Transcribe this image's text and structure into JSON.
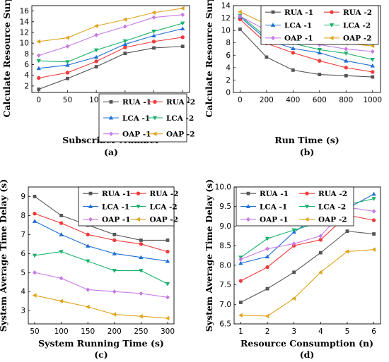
{
  "chart_data": [
    {
      "panel_label": "(a)",
      "type": "line",
      "xlabel": "Subscriber Number",
      "ylabel": "Calculate Resource Surplus",
      "x": [
        0,
        50,
        100,
        150,
        200,
        250
      ],
      "xticks": [
        0,
        50,
        100,
        150,
        200,
        250
      ],
      "yticks": [
        2,
        4,
        6,
        8,
        10,
        12,
        14,
        16
      ],
      "xlim": [
        -12,
        262
      ],
      "ylim": [
        0.8,
        17
      ],
      "legend_position": "lower-right",
      "series": [
        {
          "name": "RUA -1",
          "color": "#555555",
          "marker": "square",
          "values": [
            1.4,
            3.4,
            5.6,
            8.1,
            9.1,
            9.4
          ]
        },
        {
          "name": "RUA -2",
          "color": "#f03c3c",
          "marker": "circle",
          "values": [
            3.5,
            4.5,
            6.6,
            9.2,
            10.3,
            11.1
          ]
        },
        {
          "name": "LCA -1",
          "color": "#1f6fd6",
          "marker": "triangle-up",
          "values": [
            5.3,
            5.9,
            7.4,
            9.8,
            11.4,
            12.7
          ]
        },
        {
          "name": "LCA -2",
          "color": "#18b06a",
          "marker": "triangle-down",
          "values": [
            6.7,
            6.5,
            8.7,
            10.4,
            12.2,
            13.7
          ]
        },
        {
          "name": "OAP -1",
          "color": "#c77ae6",
          "marker": "diamond",
          "values": [
            7.7,
            9.4,
            11.5,
            13.1,
            14.8,
            15.3
          ]
        },
        {
          "name": "OAP -2",
          "color": "#e0a319",
          "marker": "triangle-left",
          "values": [
            10.3,
            11.0,
            13.2,
            14.4,
            15.7,
            16.5
          ]
        }
      ]
    },
    {
      "panel_label": "(b)",
      "type": "line",
      "xlabel": "Run Time (s)",
      "ylabel": "Calculate Resource Surplus",
      "x": [
        0,
        200,
        400,
        600,
        800,
        1000
      ],
      "xticks": [
        0,
        200,
        400,
        600,
        800,
        1000
      ],
      "yticks": [
        0,
        2,
        4,
        6,
        8,
        10,
        12,
        14
      ],
      "xlim": [
        -50,
        1060
      ],
      "ylim": [
        0,
        14
      ],
      "legend_position": "top-right",
      "series": [
        {
          "name": "RUA -1",
          "color": "#555555",
          "marker": "square",
          "values": [
            10.2,
            5.7,
            3.6,
            2.9,
            2.7,
            2.5
          ]
        },
        {
          "name": "RUA -2",
          "color": "#f03c3c",
          "marker": "circle",
          "values": [
            11.8,
            7.9,
            6.4,
            5.1,
            4.0,
            3.3
          ]
        },
        {
          "name": "LCA -1",
          "color": "#1f6fd6",
          "marker": "triangle-up",
          "values": [
            12.2,
            8.5,
            7.1,
            6.4,
            5.1,
            4.3
          ]
        },
        {
          "name": "LCA -2",
          "color": "#18b06a",
          "marker": "triangle-down",
          "values": [
            12.4,
            8.9,
            7.9,
            6.9,
            6.3,
            5.3
          ]
        },
        {
          "name": "OAP -1",
          "color": "#c77ae6",
          "marker": "diamond",
          "values": [
            12.3,
            10.0,
            8.5,
            7.7,
            7.0,
            6.6
          ]
        },
        {
          "name": "OAP -2",
          "color": "#e0a319",
          "marker": "triangle-left",
          "values": [
            13.0,
            11.0,
            9.5,
            8.7,
            7.9,
            7.5
          ]
        }
      ]
    },
    {
      "panel_label": "(c)",
      "type": "line",
      "xlabel": "System Running Time (s)",
      "ylabel": "System Average Time Delay (s)",
      "x": [
        50,
        100,
        150,
        200,
        250,
        300
      ],
      "xticks": [
        50,
        100,
        150,
        200,
        250,
        300
      ],
      "yticks": [
        3,
        4,
        5,
        6,
        7,
        8,
        9
      ],
      "xlim": [
        38,
        312
      ],
      "ylim": [
        2.3,
        9.5
      ],
      "legend_position": "top-right",
      "series": [
        {
          "name": "RUA -1",
          "color": "#555555",
          "marker": "square",
          "values": [
            9.0,
            8.0,
            7.5,
            7.0,
            6.7,
            6.7
          ]
        },
        {
          "name": "RUA -2",
          "color": "#f03c3c",
          "marker": "circle",
          "values": [
            8.1,
            7.6,
            7.0,
            6.7,
            6.5,
            6.1
          ]
        },
        {
          "name": "LCA -1",
          "color": "#1f6fd6",
          "marker": "triangle-up",
          "values": [
            7.7,
            7.0,
            6.4,
            6.0,
            5.8,
            5.6
          ]
        },
        {
          "name": "LCA -2",
          "color": "#18b06a",
          "marker": "triangle-down",
          "values": [
            5.9,
            6.1,
            5.6,
            5.1,
            5.1,
            4.4
          ]
        },
        {
          "name": "OAP -1",
          "color": "#c77ae6",
          "marker": "diamond",
          "values": [
            5.0,
            4.7,
            4.1,
            4.0,
            3.9,
            3.7
          ]
        },
        {
          "name": "OAP -2",
          "color": "#e0a319",
          "marker": "triangle-left",
          "values": [
            3.8,
            3.5,
            3.2,
            2.8,
            2.7,
            2.6
          ]
        }
      ]
    },
    {
      "panel_label": "(d)",
      "type": "line",
      "xlabel": "Resource Consumption (n)",
      "ylabel": "System Average Time Delay (s)",
      "x": [
        1,
        2,
        3,
        4,
        5,
        6
      ],
      "xticks": [
        1,
        2,
        3,
        4,
        5,
        6
      ],
      "yticks": [
        6.5,
        7.0,
        7.5,
        8.0,
        8.5,
        9.0,
        9.5,
        10.0
      ],
      "ytick_labels": [
        "6.5",
        "7.0",
        "7.5",
        "8.0",
        "8.5",
        "9.0",
        "9.5",
        "10.0"
      ],
      "xlim": [
        0.75,
        6.25
      ],
      "ylim": [
        6.5,
        10.0
      ],
      "legend_position": "top-left",
      "series": [
        {
          "name": "RUA -1",
          "color": "#555555",
          "marker": "square",
          "values": [
            7.05,
            7.4,
            7.82,
            8.32,
            8.87,
            8.8
          ]
        },
        {
          "name": "RUA -2",
          "color": "#f03c3c",
          "marker": "circle",
          "values": [
            7.6,
            7.95,
            8.5,
            8.65,
            9.28,
            9.15
          ]
        },
        {
          "name": "LCA -1",
          "color": "#1f6fd6",
          "marker": "triangle-up",
          "values": [
            8.05,
            8.22,
            8.85,
            9.3,
            9.45,
            9.82
          ]
        },
        {
          "name": "LCA -2",
          "color": "#18b06a",
          "marker": "triangle-down",
          "values": [
            8.2,
            8.68,
            8.9,
            9.1,
            9.55,
            9.7
          ]
        },
        {
          "name": "OAP -1",
          "color": "#c77ae6",
          "marker": "diamond",
          "values": [
            8.15,
            8.42,
            8.55,
            8.75,
            9.48,
            9.38
          ]
        },
        {
          "name": "OAP -2",
          "color": "#e0a319",
          "marker": "triangle-left",
          "values": [
            6.72,
            6.7,
            7.15,
            7.82,
            8.35,
            8.4
          ]
        }
      ]
    }
  ]
}
